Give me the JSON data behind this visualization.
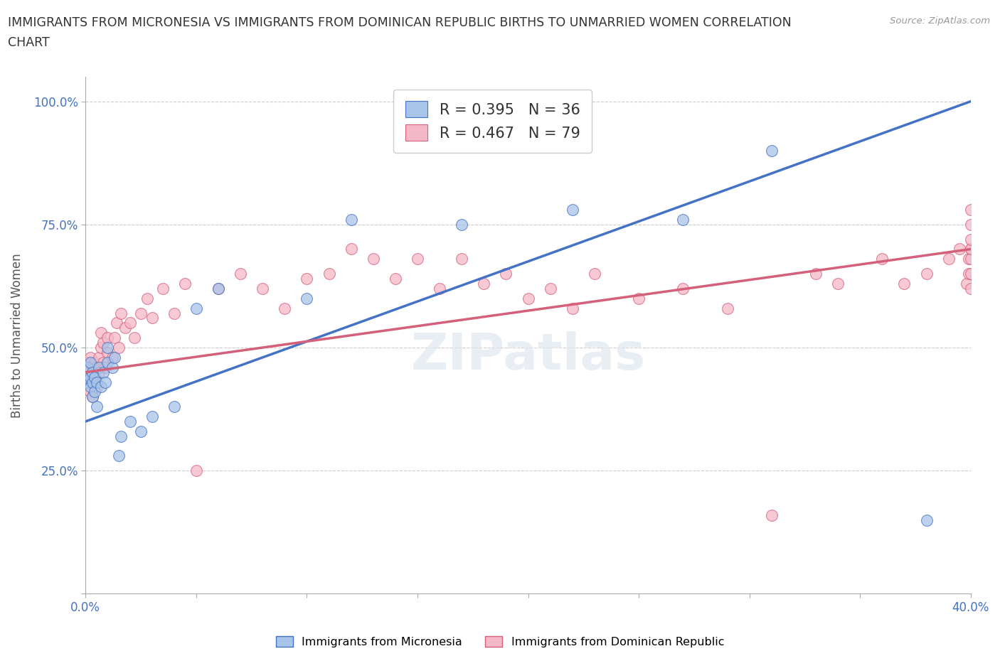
{
  "title_line1": "IMMIGRANTS FROM MICRONESIA VS IMMIGRANTS FROM DOMINICAN REPUBLIC BIRTHS TO UNMARRIED WOMEN CORRELATION",
  "title_line2": "CHART",
  "source": "Source: ZipAtlas.com",
  "ylabel": "Births to Unmarried Women",
  "xmin": 0.0,
  "xmax": 0.4,
  "ymin": 0.0,
  "ymax": 1.05,
  "yticks": [
    0.0,
    0.25,
    0.5,
    0.75,
    1.0
  ],
  "ytick_labels": [
    "",
    "25.0%",
    "50.0%",
    "75.0%",
    "100.0%"
  ],
  "blue_color": "#a8c4e8",
  "pink_color": "#f5b8c8",
  "blue_line_color": "#4472c4",
  "pink_line_color": "#d4607a",
  "blue_line": [
    0.0,
    0.4,
    0.35,
    1.0
  ],
  "pink_line": [
    0.0,
    0.4,
    0.45,
    0.7
  ],
  "blue_scatter_x": [
    0.001,
    0.001,
    0.001,
    0.002,
    0.002,
    0.002,
    0.003,
    0.003,
    0.003,
    0.004,
    0.004,
    0.005,
    0.005,
    0.006,
    0.007,
    0.008,
    0.009,
    0.01,
    0.01,
    0.012,
    0.013,
    0.015,
    0.016,
    0.02,
    0.025,
    0.03,
    0.04,
    0.05,
    0.06,
    0.1,
    0.12,
    0.17,
    0.22,
    0.27,
    0.31,
    0.38
  ],
  "blue_scatter_y": [
    0.43,
    0.44,
    0.46,
    0.42,
    0.44,
    0.47,
    0.4,
    0.43,
    0.45,
    0.41,
    0.44,
    0.38,
    0.43,
    0.46,
    0.42,
    0.45,
    0.43,
    0.47,
    0.5,
    0.46,
    0.48,
    0.28,
    0.32,
    0.35,
    0.33,
    0.36,
    0.38,
    0.58,
    0.62,
    0.6,
    0.76,
    0.75,
    0.78,
    0.76,
    0.9,
    0.15
  ],
  "pink_scatter_x": [
    0.001,
    0.001,
    0.001,
    0.001,
    0.002,
    0.002,
    0.002,
    0.002,
    0.003,
    0.003,
    0.003,
    0.004,
    0.004,
    0.005,
    0.005,
    0.006,
    0.006,
    0.007,
    0.007,
    0.008,
    0.008,
    0.009,
    0.01,
    0.01,
    0.012,
    0.013,
    0.014,
    0.015,
    0.016,
    0.018,
    0.02,
    0.022,
    0.025,
    0.028,
    0.03,
    0.035,
    0.04,
    0.045,
    0.05,
    0.06,
    0.07,
    0.08,
    0.09,
    0.1,
    0.11,
    0.12,
    0.13,
    0.14,
    0.15,
    0.16,
    0.17,
    0.18,
    0.19,
    0.2,
    0.21,
    0.22,
    0.23,
    0.25,
    0.27,
    0.29,
    0.31,
    0.33,
    0.34,
    0.36,
    0.37,
    0.38,
    0.39,
    0.395,
    0.398,
    0.399,
    0.399,
    0.4,
    0.4,
    0.4,
    0.4,
    0.4,
    0.4,
    0.4,
    0.4
  ],
  "pink_scatter_y": [
    0.43,
    0.44,
    0.45,
    0.47,
    0.41,
    0.43,
    0.46,
    0.48,
    0.4,
    0.43,
    0.46,
    0.44,
    0.47,
    0.42,
    0.46,
    0.45,
    0.48,
    0.5,
    0.53,
    0.47,
    0.51,
    0.46,
    0.49,
    0.52,
    0.48,
    0.52,
    0.55,
    0.5,
    0.57,
    0.54,
    0.55,
    0.52,
    0.57,
    0.6,
    0.56,
    0.62,
    0.57,
    0.63,
    0.25,
    0.62,
    0.65,
    0.62,
    0.58,
    0.64,
    0.65,
    0.7,
    0.68,
    0.64,
    0.68,
    0.62,
    0.68,
    0.63,
    0.65,
    0.6,
    0.62,
    0.58,
    0.65,
    0.6,
    0.62,
    0.58,
    0.16,
    0.65,
    0.63,
    0.68,
    0.63,
    0.65,
    0.68,
    0.7,
    0.63,
    0.65,
    0.68,
    0.7,
    0.62,
    0.65,
    0.68,
    0.7,
    0.72,
    0.75,
    0.78
  ]
}
